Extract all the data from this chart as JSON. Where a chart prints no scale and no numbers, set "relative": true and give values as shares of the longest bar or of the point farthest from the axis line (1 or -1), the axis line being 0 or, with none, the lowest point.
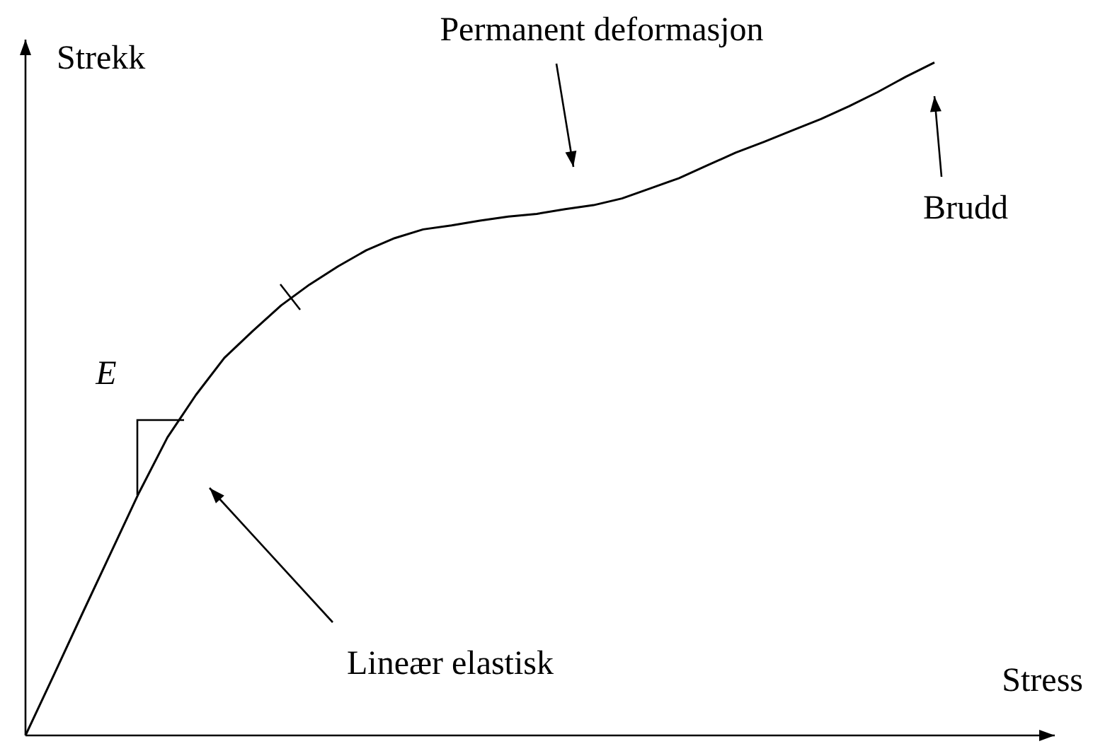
{
  "chart_data": {
    "type": "line",
    "relative": true,
    "xlabel": "Stress",
    "ylabel": "Strekk",
    "color": "#000000",
    "marker": "none",
    "line_style": "solid",
    "legend": false,
    "categories": [
      null,
      null,
      null,
      null,
      null,
      null,
      null,
      null,
      null,
      null,
      null,
      null,
      null,
      null,
      null,
      null,
      null,
      null,
      null,
      null,
      null,
      null,
      null,
      null,
      null,
      null,
      null,
      null,
      null,
      null,
      null,
      null,
      null
    ],
    "values": [
      0,
      0.09,
      0.181,
      0.271,
      0.361,
      0.443,
      0.506,
      0.561,
      0.601,
      0.639,
      0.67,
      0.697,
      0.721,
      0.739,
      0.752,
      0.758,
      0.765,
      0.771,
      0.775,
      0.782,
      0.788,
      0.798,
      0.813,
      0.828,
      0.847,
      0.866,
      0.882,
      0.899,
      0.916,
      0.935,
      0.956,
      0.979,
      1
    ],
    "annotations": [
      "Permanent deformasjon",
      "Brudd",
      "Lineær elastisk",
      "E"
    ]
  }
}
